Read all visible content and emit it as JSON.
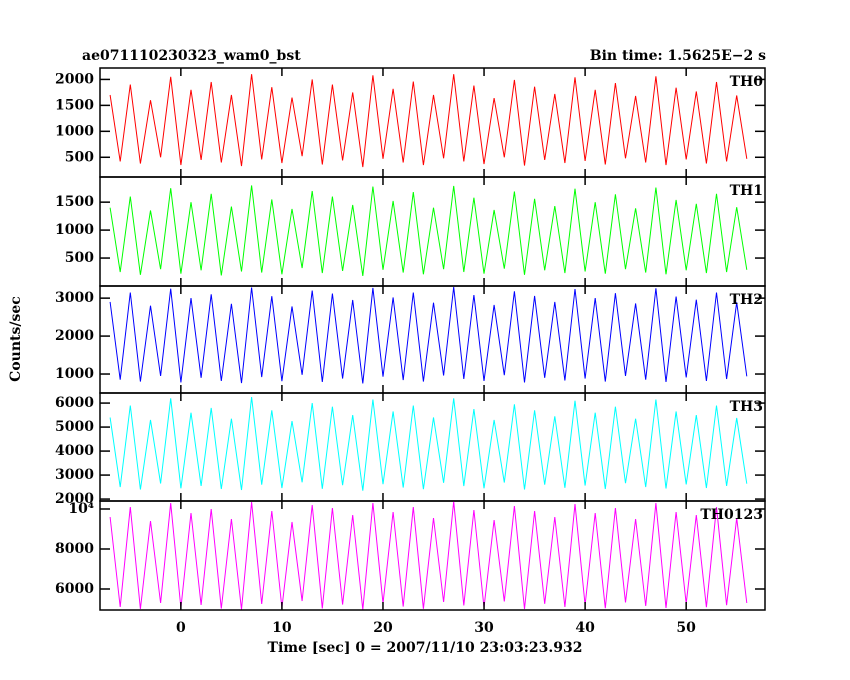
{
  "chart_data": [
    {
      "type": "line",
      "title": "ae071110230323_wam0_bst",
      "subtitle": "Bin time: 1.5625E−2 s",
      "ylabel": "Counts/sec",
      "xlim": [
        -8,
        57.8
      ],
      "ylim": [
        120,
        2220
      ],
      "yticks": [
        500,
        1000,
        1500,
        2000
      ],
      "x": [
        -7,
        -6,
        -5,
        -4,
        -3,
        -2,
        -1,
        0,
        1,
        2,
        3,
        4,
        5,
        6,
        7,
        8,
        9,
        10,
        11,
        12,
        13,
        14,
        15,
        16,
        17,
        18,
        19,
        20,
        21,
        22,
        23,
        24,
        25,
        26,
        27,
        28,
        29,
        30,
        31,
        32,
        33,
        34,
        35,
        36,
        37,
        38,
        39,
        40,
        41,
        42,
        43,
        44,
        45,
        46,
        47,
        48,
        49,
        50,
        51,
        52,
        53,
        54,
        55,
        56
      ],
      "series": [
        {
          "name": "TH0",
          "color": "#ff0000",
          "values": [
            1700,
            420,
            1900,
            380,
            1600,
            500,
            2050,
            350,
            1800,
            450,
            1950,
            400,
            1700,
            330,
            2100,
            460,
            1850,
            390,
            1650,
            520,
            2000,
            360,
            1900,
            440,
            1750,
            310,
            2080,
            470,
            1820,
            400,
            1960,
            350,
            1700,
            480,
            2100,
            420,
            1880,
            370,
            1640,
            500,
            1990,
            340,
            1860,
            450,
            1720,
            390,
            2040,
            430,
            1800,
            360,
            1930,
            480,
            1680,
            400,
            2060,
            350,
            1840,
            460,
            1770,
            380,
            1950,
            420,
            1690,
            470
          ]
        }
      ]
    },
    {
      "type": "line",
      "xlim": [
        -8,
        57.8
      ],
      "ylim": [
        0,
        1950
      ],
      "yticks": [
        500,
        1000,
        1500
      ],
      "x": [
        -7,
        -6,
        -5,
        -4,
        -3,
        -2,
        -1,
        0,
        1,
        2,
        3,
        4,
        5,
        6,
        7,
        8,
        9,
        10,
        11,
        12,
        13,
        14,
        15,
        16,
        17,
        18,
        19,
        20,
        21,
        22,
        23,
        24,
        25,
        26,
        27,
        28,
        29,
        30,
        31,
        32,
        33,
        34,
        35,
        36,
        37,
        38,
        39,
        40,
        41,
        42,
        43,
        44,
        45,
        46,
        47,
        48,
        49,
        50,
        51,
        52,
        53,
        54,
        55,
        56
      ],
      "series": [
        {
          "name": "TH1",
          "color": "#00ff00",
          "values": [
            1400,
            250,
            1600,
            200,
            1350,
            300,
            1750,
            220,
            1500,
            280,
            1650,
            190,
            1420,
            260,
            1800,
            240,
            1550,
            210,
            1380,
            320,
            1700,
            230,
            1600,
            270,
            1450,
            180,
            1780,
            290,
            1520,
            240,
            1680,
            210,
            1400,
            300,
            1790,
            250,
            1580,
            220,
            1360,
            310,
            1690,
            200,
            1560,
            280,
            1430,
            230,
            1740,
            260,
            1500,
            220,
            1640,
            300,
            1390,
            240,
            1760,
            210,
            1540,
            280,
            1470,
            230,
            1650,
            250,
            1410,
            290
          ]
        }
      ]
    },
    {
      "type": "line",
      "xlim": [
        -8,
        57.8
      ],
      "ylim": [
        500,
        3320
      ],
      "yticks": [
        1000,
        2000,
        3000
      ],
      "x": [
        -7,
        -6,
        -5,
        -4,
        -3,
        -2,
        -1,
        0,
        1,
        2,
        3,
        4,
        5,
        6,
        7,
        8,
        9,
        10,
        11,
        12,
        13,
        14,
        15,
        16,
        17,
        18,
        19,
        20,
        21,
        22,
        23,
        24,
        25,
        26,
        27,
        28,
        29,
        30,
        31,
        32,
        33,
        34,
        35,
        36,
        37,
        38,
        39,
        40,
        41,
        42,
        43,
        44,
        45,
        46,
        47,
        48,
        49,
        50,
        51,
        52,
        53,
        54,
        55,
        56
      ],
      "series": [
        {
          "name": "TH2",
          "color": "#0000ff",
          "values": [
            2900,
            850,
            3150,
            800,
            2800,
            950,
            3250,
            780,
            3000,
            900,
            3100,
            820,
            2850,
            760,
            3280,
            920,
            3050,
            810,
            2780,
            980,
            3200,
            790,
            3120,
            880,
            2950,
            750,
            3270,
            930,
            3020,
            840,
            3150,
            800,
            2880,
            960,
            3290,
            870,
            3080,
            820,
            2820,
            970,
            3180,
            780,
            3060,
            900,
            2900,
            830,
            3240,
            880,
            3000,
            800,
            3130,
            950,
            2860,
            850,
            3260,
            790,
            3040,
            910,
            2960,
            820,
            3150,
            870,
            2890,
            940
          ]
        }
      ]
    },
    {
      "type": "line",
      "xlim": [
        -8,
        57.8
      ],
      "ylim": [
        1920,
        6420
      ],
      "yticks": [
        2000,
        3000,
        4000,
        5000,
        6000
      ],
      "x": [
        -7,
        -6,
        -5,
        -4,
        -3,
        -2,
        -1,
        0,
        1,
        2,
        3,
        4,
        5,
        6,
        7,
        8,
        9,
        10,
        11,
        12,
        13,
        14,
        15,
        16,
        17,
        18,
        19,
        20,
        21,
        22,
        23,
        24,
        25,
        26,
        27,
        28,
        29,
        30,
        31,
        32,
        33,
        34,
        35,
        36,
        37,
        38,
        39,
        40,
        41,
        42,
        43,
        44,
        45,
        46,
        47,
        48,
        49,
        50,
        51,
        52,
        53,
        54,
        55,
        56
      ],
      "series": [
        {
          "name": "TH3",
          "color": "#00ffff",
          "values": [
            5400,
            2500,
            5900,
            2400,
            5300,
            2650,
            6200,
            2450,
            5600,
            2550,
            5800,
            2420,
            5350,
            2380,
            6250,
            2600,
            5700,
            2460,
            5250,
            2700,
            6000,
            2430,
            5850,
            2580,
            5500,
            2350,
            6150,
            2620,
            5650,
            2480,
            5900,
            2410,
            5400,
            2680,
            6200,
            2540,
            5750,
            2450,
            5300,
            2690,
            5950,
            2400,
            5700,
            2600,
            5450,
            2470,
            6100,
            2560,
            5600,
            2420,
            5850,
            2660,
            5350,
            2500,
            6150,
            2440,
            5650,
            2610,
            5500,
            2460,
            5900,
            2550,
            5380,
            2640
          ]
        }
      ]
    },
    {
      "type": "line",
      "xlabel": "Time [sec] 0 = 2007/11/10 23:03:23.932",
      "xlim": [
        -8,
        57.8
      ],
      "xticks": [
        0,
        10,
        20,
        30,
        40,
        50
      ],
      "ylim": [
        4950,
        10400
      ],
      "yticks": [
        6000,
        8000,
        {
          "value": 10000,
          "label": "10⁴"
        }
      ],
      "x": [
        -7,
        -6,
        -5,
        -4,
        -3,
        -2,
        -1,
        0,
        1,
        2,
        3,
        4,
        5,
        6,
        7,
        8,
        9,
        10,
        11,
        12,
        13,
        14,
        15,
        16,
        17,
        18,
        19,
        20,
        21,
        22,
        23,
        24,
        25,
        26,
        27,
        28,
        29,
        30,
        31,
        32,
        33,
        34,
        35,
        36,
        37,
        38,
        39,
        40,
        41,
        42,
        43,
        44,
        45,
        46,
        47,
        48,
        49,
        50,
        51,
        52,
        53,
        54,
        55,
        56
      ],
      "series": [
        {
          "name": "TH0123",
          "color": "#ff00ff",
          "values": [
            9600,
            5100,
            10100,
            5000,
            9400,
            5300,
            10300,
            5050,
            9800,
            5200,
            10000,
            5020,
            9500,
            4980,
            10350,
            5250,
            9900,
            5060,
            9350,
            5400,
            10200,
            5030,
            10050,
            5220,
            9700,
            4970,
            10300,
            5280,
            9850,
            5120,
            10100,
            5010,
            9550,
            5350,
            10380,
            5180,
            9950,
            5080,
            9450,
            5380,
            10150,
            5000,
            9900,
            5260,
            9600,
            5100,
            10250,
            5200,
            9800,
            5040,
            10050,
            5330,
            9500,
            5150,
            10300,
            5050,
            9850,
            5270,
            9700,
            5090,
            10100,
            5190,
            9550,
            5300
          ]
        }
      ]
    }
  ]
}
